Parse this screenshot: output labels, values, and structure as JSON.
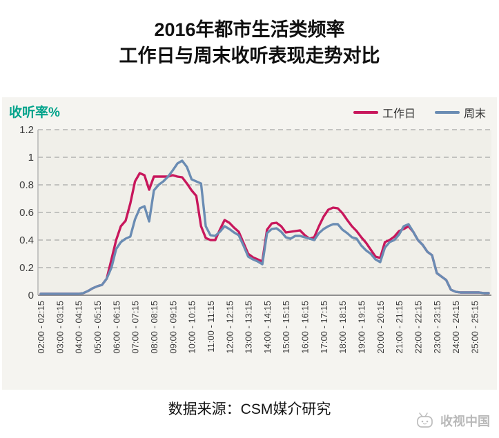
{
  "title": {
    "line1": "2016年都市生活类频率",
    "line2": "工作日与周末收听表现走势对比"
  },
  "panel": {
    "unit_label": "收听率%"
  },
  "footer": {
    "source": "数据来源：CSM媒介研究",
    "watermark": "收视中国"
  },
  "colors": {
    "weekday_line": "#c8175c",
    "weekend_line": "#6a8cb3",
    "unit_label": "#00a38b",
    "panel_bg": "#f5f4f0",
    "plot_bg": "#f0efe9",
    "grid": "#a6a6a6",
    "axis_bottom": "#8f8f8f",
    "axis_left": "#b5b5b5",
    "watermark": "#b9b9b9"
  },
  "chart_data": {
    "type": "line",
    "title": "2016年都市生活类频率 工作日与周末收听表现走势对比",
    "xlabel": "",
    "ylabel": "收听率%",
    "ylim": [
      0,
      1.2
    ],
    "grid": "horizontal-dashed",
    "legend_position": "top-right",
    "y_ticks": [
      "1.2",
      "1",
      "0.8",
      "0.6",
      "0.4",
      "0.2",
      "0"
    ],
    "points_per_label": 4,
    "x_interval_minutes": 15,
    "x_tick_labels": [
      "02:00 - 02:15",
      "03:00 - 03:15",
      "04:00 - 04:15",
      "05:00 - 05:15",
      "06:00 - 06:15",
      "07:00 - 07:15",
      "08:00 - 08:15",
      "09:00 - 09:15",
      "10:00 - 10:15",
      "11:00 - 11:15",
      "12:00 - 12:15",
      "13:00 - 13:15",
      "14:00 - 14:15",
      "15:00 - 15:15",
      "16:00 - 16:15",
      "17:00 - 17:15",
      "18:00 - 18:15",
      "19:00 - 19:15",
      "20:00 - 20:15",
      "21:00 - 21:15",
      "22:00 - 22:15",
      "23:00 - 23:15",
      "24:00 - 24:15",
      "25:00 - 25:15"
    ],
    "series": [
      {
        "name": "工作日",
        "color": "#c8175c",
        "values": [
          0.01,
          0.01,
          0.01,
          0.01,
          0.01,
          0.01,
          0.01,
          0.01,
          0.01,
          0.015,
          0.03,
          0.05,
          0.065,
          0.075,
          0.12,
          0.26,
          0.4,
          0.5,
          0.54,
          0.665,
          0.825,
          0.885,
          0.87,
          0.765,
          0.86,
          0.86,
          0.86,
          0.86,
          0.87,
          0.86,
          0.855,
          0.81,
          0.76,
          0.72,
          0.5,
          0.415,
          0.4,
          0.4,
          0.475,
          0.545,
          0.525,
          0.49,
          0.46,
          0.38,
          0.3,
          0.275,
          0.26,
          0.245,
          0.475,
          0.52,
          0.525,
          0.5,
          0.455,
          0.46,
          0.465,
          0.47,
          0.435,
          0.41,
          0.42,
          0.5,
          0.57,
          0.62,
          0.635,
          0.63,
          0.595,
          0.545,
          0.5,
          0.465,
          0.42,
          0.38,
          0.33,
          0.28,
          0.27,
          0.385,
          0.4,
          0.425,
          0.465,
          0.48,
          0.5,
          0.46,
          0.4,
          0.365,
          0.315,
          0.29,
          0.16,
          0.135,
          0.11,
          0.04,
          0.025,
          0.02,
          0.02,
          0.02,
          0.02,
          0.02,
          0.015,
          0.015
        ]
      },
      {
        "name": "周末",
        "color": "#6a8cb3",
        "values": [
          0.01,
          0.01,
          0.01,
          0.01,
          0.01,
          0.01,
          0.01,
          0.01,
          0.01,
          0.015,
          0.03,
          0.05,
          0.065,
          0.075,
          0.12,
          0.2,
          0.335,
          0.385,
          0.41,
          0.425,
          0.55,
          0.63,
          0.645,
          0.535,
          0.76,
          0.8,
          0.825,
          0.86,
          0.905,
          0.955,
          0.975,
          0.93,
          0.84,
          0.825,
          0.81,
          0.5,
          0.435,
          0.43,
          0.46,
          0.5,
          0.48,
          0.455,
          0.435,
          0.36,
          0.28,
          0.26,
          0.245,
          0.225,
          0.45,
          0.48,
          0.485,
          0.46,
          0.42,
          0.41,
          0.43,
          0.43,
          0.42,
          0.41,
          0.4,
          0.45,
          0.48,
          0.5,
          0.515,
          0.515,
          0.475,
          0.45,
          0.42,
          0.41,
          0.36,
          0.325,
          0.3,
          0.26,
          0.24,
          0.345,
          0.385,
          0.4,
          0.44,
          0.5,
          0.515,
          0.46,
          0.4,
          0.365,
          0.315,
          0.29,
          0.16,
          0.135,
          0.11,
          0.04,
          0.025,
          0.02,
          0.02,
          0.02,
          0.02,
          0.02,
          0.015,
          0.015
        ]
      }
    ]
  }
}
